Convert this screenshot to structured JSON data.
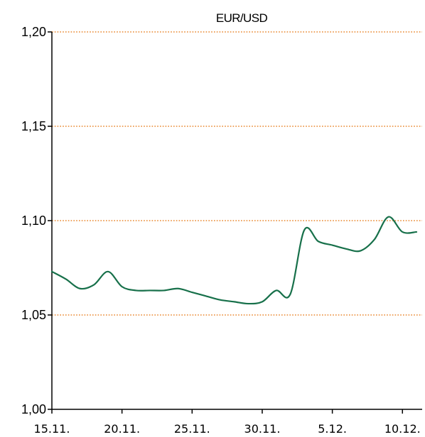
{
  "chart_data": {
    "type": "line",
    "title": "EUR/USD",
    "xlabel": "",
    "ylabel": "",
    "x_ticks": [
      "15.11.",
      "20.11.",
      "25.11.",
      "30.11.",
      "5.12.",
      "10.12."
    ],
    "y_ticks": [
      "1,00",
      "1,05",
      "1,10",
      "1,15",
      "1,20"
    ],
    "ylim": [
      1.0,
      1.2
    ],
    "grid": "horizontal-dotted",
    "legend": "none",
    "colors": {
      "line": "#17704a",
      "grid": "#e8862c",
      "axis": "#000000"
    },
    "series": [
      {
        "x": [
          "15.11.",
          "16.11.",
          "17.11.",
          "18.11.",
          "19.11.",
          "20.11.",
          "21.11.",
          "22.11.",
          "23.11.",
          "24.11.",
          "25.11.",
          "26.11.",
          "27.11.",
          "28.11.",
          "29.11.",
          "30.11.",
          "1.12.",
          "2.12.",
          "3.12.",
          "4.12.",
          "5.12.",
          "6.12.",
          "7.12.",
          "8.12.",
          "9.12.",
          "10.12.",
          "11.12."
        ],
        "values": [
          1.073,
          1.069,
          1.064,
          1.066,
          1.073,
          1.065,
          1.063,
          1.063,
          1.063,
          1.064,
          1.062,
          1.06,
          1.058,
          1.057,
          1.056,
          1.057,
          1.063,
          1.061,
          1.095,
          1.089,
          1.087,
          1.085,
          1.084,
          1.09,
          1.102,
          1.094,
          1.094
        ]
      }
    ]
  }
}
